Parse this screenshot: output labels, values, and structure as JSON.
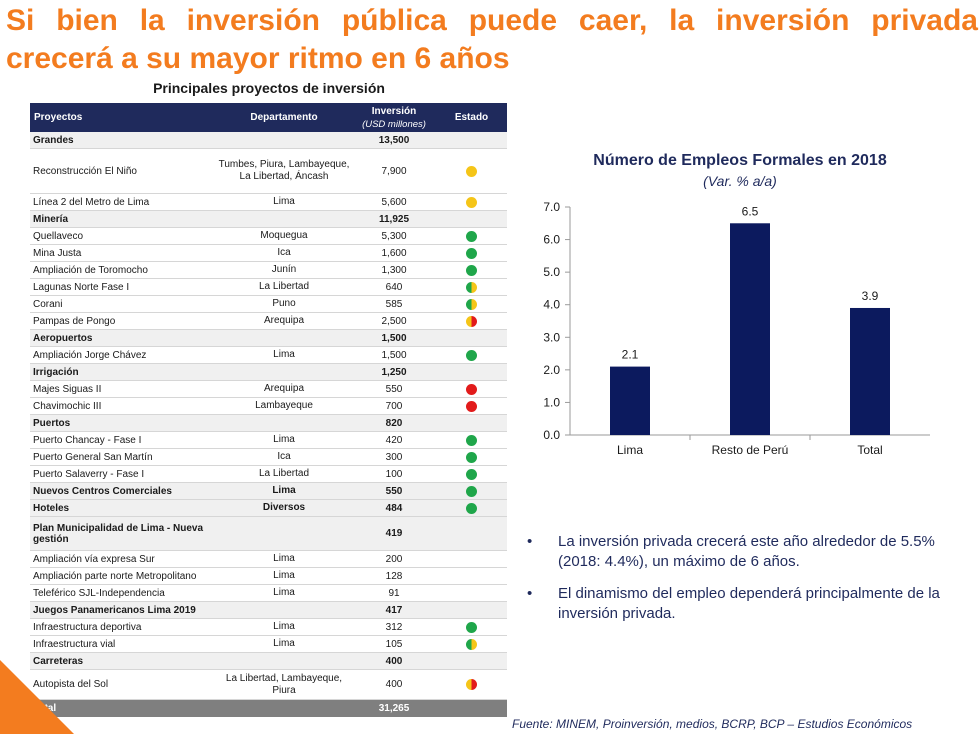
{
  "title_line1": "Si bien la inversión pública puede caer, la inversión privada",
  "title_line2": "crecerá a su mayor ritmo en 6 años",
  "table": {
    "caption": "Principales proyectos de inversión",
    "headers": {
      "proyectos": "Proyectos",
      "departamento": "Departamento",
      "inversion": "Inversión",
      "inversion_unit": "(USD millones)",
      "estado": "Estado"
    },
    "rows": [
      {
        "type": "cat",
        "name": "Grandes",
        "dept": "",
        "value": "13,500",
        "status": ""
      },
      {
        "type": "item",
        "name": "Reconstrucción El Niño",
        "dept": "Tumbes, Piura, Lambayeque, La Libertad, Áncash",
        "value": "7,900",
        "status": "yellow",
        "h": 45
      },
      {
        "type": "item",
        "name": "Línea 2 del Metro de Lima",
        "dept": "Lima",
        "value": "5,600",
        "status": "yellow"
      },
      {
        "type": "cat",
        "name": "Minería",
        "dept": "",
        "value": "11,925",
        "status": ""
      },
      {
        "type": "item",
        "name": "Quellaveco",
        "dept": "Moquegua",
        "value": "5,300",
        "status": "green"
      },
      {
        "type": "item",
        "name": "Mina Justa",
        "dept": "Ica",
        "value": "1,600",
        "status": "green"
      },
      {
        "type": "item",
        "name": "Ampliación de Toromocho",
        "dept": "Junín",
        "value": "1,300",
        "status": "green"
      },
      {
        "type": "item",
        "name": "Lagunas Norte Fase I",
        "dept": "La Libertad",
        "value": "640",
        "status": "green-yellow"
      },
      {
        "type": "item",
        "name": "Corani",
        "dept": "Puno",
        "value": "585",
        "status": "green-yellow"
      },
      {
        "type": "item",
        "name": "Pampas de Pongo",
        "dept": "Arequipa",
        "value": "2,500",
        "status": "yellow-red"
      },
      {
        "type": "cat",
        "name": "Aeropuertos",
        "dept": "",
        "value": "1,500",
        "status": ""
      },
      {
        "type": "item",
        "name": "Ampliación Jorge Chávez",
        "dept": "Lima",
        "value": "1,500",
        "status": "green"
      },
      {
        "type": "cat",
        "name": "Irrigación",
        "dept": "",
        "value": "1,250",
        "status": ""
      },
      {
        "type": "item",
        "name": "Majes Siguas II",
        "dept": "Arequipa",
        "value": "550",
        "status": "red"
      },
      {
        "type": "item",
        "name": "Chavimochic III",
        "dept": "Lambayeque",
        "value": "700",
        "status": "red"
      },
      {
        "type": "cat",
        "name": "Puertos",
        "dept": "",
        "value": "820",
        "status": ""
      },
      {
        "type": "item",
        "name": "Puerto Chancay - Fase I",
        "dept": "Lima",
        "value": "420",
        "status": "green"
      },
      {
        "type": "item",
        "name": "Puerto General San Martín",
        "dept": "Ica",
        "value": "300",
        "status": "green"
      },
      {
        "type": "item",
        "name": "Puerto Salaverry - Fase I",
        "dept": "La Libertad",
        "value": "100",
        "status": "green"
      },
      {
        "type": "cat",
        "name": "Nuevos Centros Comerciales",
        "dept": "Lima",
        "value": "550",
        "status": "green"
      },
      {
        "type": "cat",
        "name": "Hoteles",
        "dept": "Diversos",
        "value": "484",
        "status": "green"
      },
      {
        "type": "cat",
        "name": "Plan Municipalidad de Lima - Nueva gestión",
        "dept": "",
        "value": "419",
        "status": "",
        "h": 34
      },
      {
        "type": "item",
        "name": "Ampliación vía expresa Sur",
        "dept": "Lima",
        "value": "200",
        "status": ""
      },
      {
        "type": "item",
        "name": "Ampliación parte norte Metropolitano",
        "dept": "Lima",
        "value": "128",
        "status": ""
      },
      {
        "type": "item",
        "name": "Teleférico SJL-Independencia",
        "dept": "Lima",
        "value": "91",
        "status": ""
      },
      {
        "type": "cat",
        "name": "Juegos Panamericanos Lima 2019",
        "dept": "",
        "value": "417",
        "status": ""
      },
      {
        "type": "item",
        "name": "Infraestructura deportiva",
        "dept": "Lima",
        "value": "312",
        "status": "green"
      },
      {
        "type": "item",
        "name": "Infraestructura vial",
        "dept": "Lima",
        "value": "105",
        "status": "green-yellow"
      },
      {
        "type": "cat",
        "name": "Carreteras",
        "dept": "",
        "value": "400",
        "status": ""
      },
      {
        "type": "item",
        "name": "Autopista del Sol",
        "dept": "La Libertad, Lambayeque, Piura",
        "value": "400",
        "status": "yellow-red",
        "h": 30
      },
      {
        "type": "total",
        "name": "Total",
        "dept": "",
        "value": "31,265",
        "status": ""
      }
    ]
  },
  "chart_data": {
    "type": "bar",
    "title": "Número de Empleos Formales en 2018",
    "subtitle": "(Var. % a/a)",
    "categories": [
      "Lima",
      "Resto de Perú",
      "Total"
    ],
    "values": [
      2.1,
      6.5,
      3.9
    ],
    "value_labels": [
      "2.1",
      "6.5",
      "3.9"
    ],
    "ylim": [
      0,
      7
    ],
    "yticks": [
      "0.0",
      "1.0",
      "2.0",
      "3.0",
      "4.0",
      "5.0",
      "6.0",
      "7.0"
    ],
    "bar_color": "#0c1a5e",
    "xlabel": "",
    "ylabel": ""
  },
  "bullets": [
    "La inversión privada crecerá este año alrededor de 5.5% (2018: 4.4%), un máximo de 6 años.",
    "El dinamismo del empleo dependerá principalmente de la inversión privada."
  ],
  "bullet_marker": "•",
  "source": "Fuente: MINEM, Proinversión, medios, BCRP, BCP – Estudios Económicos",
  "colors": {
    "accent": "#f37c1f",
    "navy": "#1f2a5c"
  }
}
